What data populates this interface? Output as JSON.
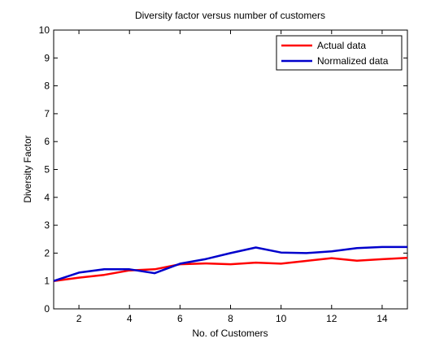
{
  "chart_data": {
    "type": "line",
    "title": "Diversity factor versus number of customers",
    "xlabel": "No. of Customers",
    "ylabel": "Diversity Factor",
    "xlim": [
      1,
      15
    ],
    "ylim": [
      0,
      10
    ],
    "xticks": [
      2,
      4,
      6,
      8,
      10,
      12,
      14
    ],
    "yticks": [
      0,
      1,
      2,
      3,
      4,
      5,
      6,
      7,
      8,
      9,
      10
    ],
    "grid": false,
    "legend_position": "top-right",
    "x": [
      1,
      2,
      3,
      4,
      5,
      6,
      7,
      8,
      9,
      10,
      11,
      12,
      13,
      14,
      15
    ],
    "series": [
      {
        "name": "Actual data",
        "color": "#ff0000",
        "values": [
          1.0,
          1.12,
          1.22,
          1.38,
          1.42,
          1.6,
          1.63,
          1.6,
          1.66,
          1.62,
          1.72,
          1.82,
          1.73,
          1.78,
          1.83
        ]
      },
      {
        "name": "Normalized data",
        "color": "#0000cc",
        "values": [
          1.0,
          1.3,
          1.42,
          1.42,
          1.28,
          1.62,
          1.78,
          2.0,
          2.2,
          2.02,
          2.0,
          2.06,
          2.18,
          2.22,
          2.22
        ]
      }
    ]
  }
}
